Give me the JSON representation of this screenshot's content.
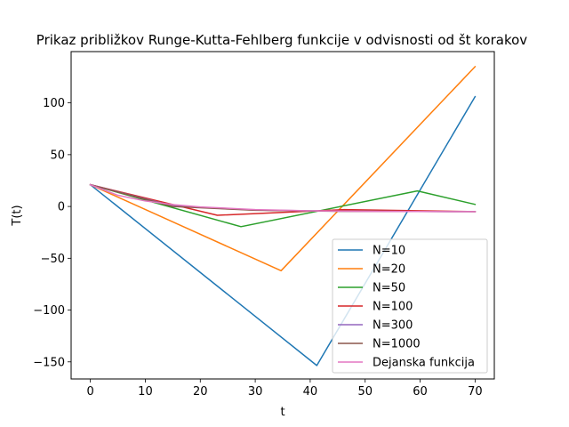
{
  "chart_data": {
    "type": "line",
    "title": "Prikaz približkov Runge-Kutta-Fehlberg funkcije v odvisnosti od št korakov",
    "xlabel": "t",
    "ylabel": "T(t)",
    "xlim": [
      -3.5,
      73.5
    ],
    "ylim": [
      -166.5,
      149.5
    ],
    "xticks": [
      0,
      10,
      20,
      30,
      40,
      50,
      60,
      70
    ],
    "yticks": [
      -150,
      -100,
      -50,
      0,
      50,
      100
    ],
    "grid": false,
    "legend_position": "lower right",
    "series": [
      {
        "name": "N=10",
        "color": "#1f77b4",
        "x": [
          0,
          41.2,
          70
        ],
        "y": [
          21,
          -153.5,
          106
        ]
      },
      {
        "name": "N=20",
        "color": "#ff7f0e",
        "x": [
          0,
          34.7,
          70
        ],
        "y": [
          21,
          -62,
          135
        ]
      },
      {
        "name": "N=50",
        "color": "#2ca02c",
        "x": [
          0,
          27.4,
          59.5,
          70
        ],
        "y": [
          21,
          -19.5,
          15,
          2
        ]
      },
      {
        "name": "N=100",
        "color": "#d62728",
        "x": [
          0,
          23.1,
          46.2,
          70
        ],
        "y": [
          21,
          -8.5,
          -3,
          -5
        ]
      },
      {
        "name": "N=300",
        "color": "#9467bd",
        "x": [
          0,
          15,
          30,
          45,
          70
        ],
        "y": [
          21,
          0.5,
          -3.5,
          -4.5,
          -5
        ]
      },
      {
        "name": "N=1000",
        "color": "#8c564b",
        "x": [
          0,
          15,
          30,
          45,
          70
        ],
        "y": [
          21,
          0,
          -3.7,
          -4.6,
          -5
        ]
      },
      {
        "name": "Dejanska funkcija",
        "color": "#e377c2",
        "x": [
          0,
          5,
          10,
          15,
          20,
          30,
          40,
          50,
          60,
          70
        ],
        "y": [
          21,
          10.8,
          5.3,
          1.8,
          -0.4,
          -3,
          -4.2,
          -4.7,
          -4.9,
          -5
        ]
      }
    ]
  }
}
